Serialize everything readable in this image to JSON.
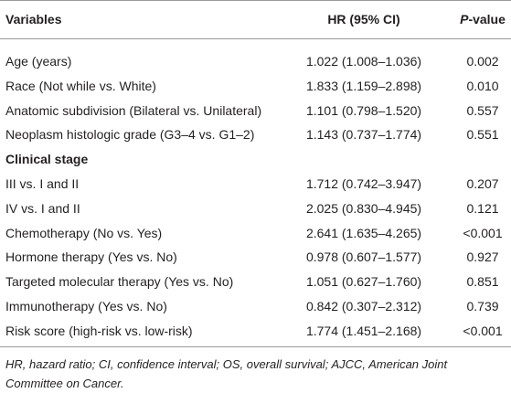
{
  "table": {
    "header": [
      "Variables",
      "HR (95% CI)",
      {
        "italic": "P",
        "rest": "-value"
      }
    ],
    "rows": [
      {
        "cells": [
          "Age (years)",
          "1.022 (1.008–1.036)",
          "0.002"
        ]
      },
      {
        "cells": [
          "Race (Not while vs. White)",
          "1.833 (1.159–2.898)",
          "0.010"
        ]
      },
      {
        "cells": [
          "Anatomic subdivision (Bilateral vs. Unilateral)",
          "1.101 (0.798–1.520)",
          "0.557"
        ]
      },
      {
        "cells": [
          "Neoplasm histologic grade (G3–4 vs. G1–2)",
          "1.143 (0.737–1.774)",
          "0.551"
        ]
      },
      {
        "section": "Clinical stage"
      },
      {
        "cells": [
          "III vs. I and II",
          "1.712 (0.742–3.947)",
          "0.207"
        ]
      },
      {
        "cells": [
          "IV vs. I and II",
          "2.025 (0.830–4.945)",
          "0.121"
        ]
      },
      {
        "cells": [
          "Chemotherapy (No vs. Yes)",
          "2.641 (1.635–4.265)",
          "<0.001"
        ]
      },
      {
        "cells": [
          "Hormone therapy (Yes vs. No)",
          "0.978 (0.607–1.577)",
          "0.927"
        ]
      },
      {
        "cells": [
          "Targeted molecular therapy (Yes vs. No)",
          "1.051 (0.627–1.760)",
          "0.851"
        ]
      },
      {
        "cells": [
          "Immunotherapy (Yes vs. No)",
          "0.842 (0.307–2.312)",
          "0.739"
        ]
      },
      {
        "cells": [
          "Risk score (high-risk vs. low-risk)",
          "1.774 (1.451–2.168)",
          "<0.001"
        ]
      }
    ],
    "footnote": "HR, hazard ratio; CI, confidence interval; OS, overall survival; AJCC, American Joint Committee on Cancer."
  }
}
